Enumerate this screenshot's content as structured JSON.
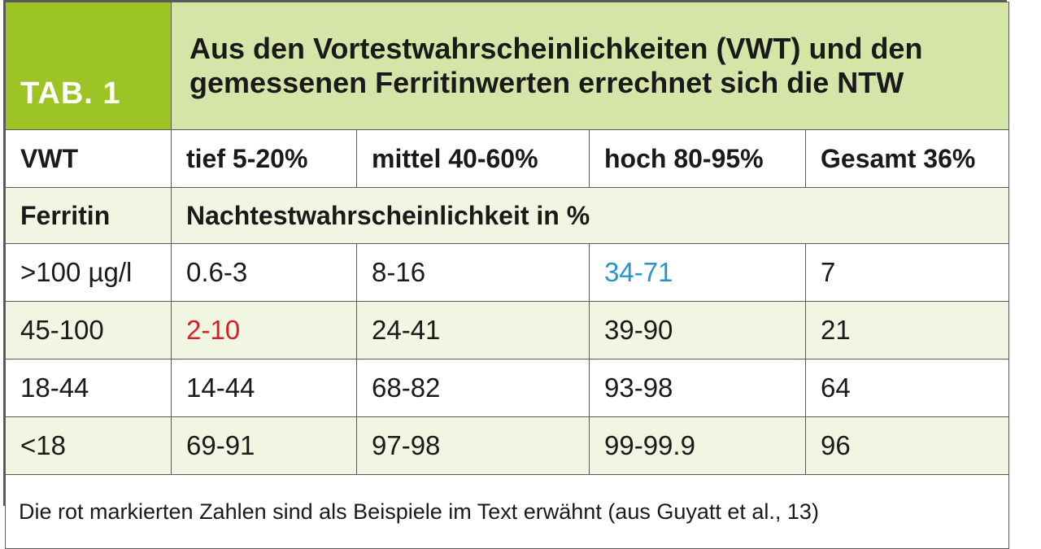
{
  "table": {
    "tab_label": "TAB. 1",
    "title": "Aus den Vortestwahrscheinlichkeiten (VWT) und den gemessenen Ferritinwerten errechnet sich die NTW",
    "header": {
      "label": "VWT",
      "columns": [
        "tief 5-20%",
        "mittel 40-60%",
        "hoch 80-95%",
        "Gesamt 36%"
      ]
    },
    "subheader": {
      "label": "Ferritin",
      "caption": "Nachtestwahrscheinlichkeit in %"
    },
    "rows": [
      {
        "label": ">100 µg/l",
        "values": [
          "0.6-3",
          "8-16",
          "34-71",
          "7"
        ]
      },
      {
        "label": "45-100",
        "values": [
          "2-10",
          "24-41",
          "39-90",
          "21"
        ]
      },
      {
        "label": "18-44",
        "values": [
          "14-44",
          "68-82",
          "93-98",
          "64"
        ]
      },
      {
        "label": "<18",
        "values": [
          "69-91",
          "97-98",
          "99-99.9",
          "96"
        ]
      }
    ],
    "highlight_colors": {
      "red": "#d81f26",
      "blue": "#2a95c8"
    },
    "footnote": "Die rot markierten Zahlen sind als Beispiele im Text erwähnt (aus Guyatt et al., 13)"
  }
}
